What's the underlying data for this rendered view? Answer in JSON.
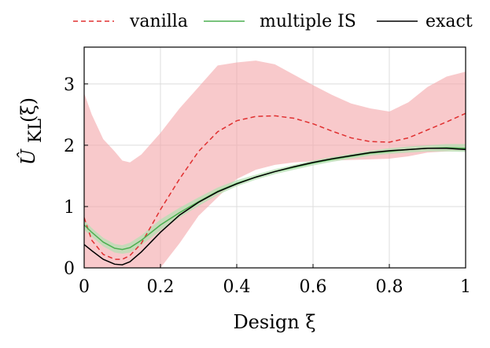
{
  "chart_data": {
    "type": "line",
    "xlabel": "Design ξ",
    "ylabel": "Û_KL(ξ)",
    "xlim": [
      0,
      1
    ],
    "ylim": [
      0,
      3.6
    ],
    "grid": true,
    "legend_position": "top",
    "x_ticks": [
      "0",
      "0.2",
      "0.4",
      "0.6",
      "0.8",
      "1"
    ],
    "y_ticks": [
      "0",
      "1",
      "2",
      "3"
    ],
    "x_tick_values": [
      0,
      0.2,
      0.4,
      0.6,
      0.8,
      1
    ],
    "y_tick_values": [
      0,
      1,
      2,
      3
    ],
    "series": [
      {
        "name": "vanilla",
        "color": "#e03030",
        "style": "dashed",
        "band_color": "#f4a5a8",
        "x": [
          0,
          0.02,
          0.05,
          0.08,
          0.1,
          0.12,
          0.15,
          0.2,
          0.25,
          0.3,
          0.35,
          0.4,
          0.45,
          0.5,
          0.55,
          0.6,
          0.65,
          0.7,
          0.75,
          0.8,
          0.85,
          0.9,
          0.95,
          1.0
        ],
        "y": [
          0.82,
          0.45,
          0.22,
          0.14,
          0.14,
          0.2,
          0.4,
          0.95,
          1.45,
          1.9,
          2.22,
          2.4,
          2.47,
          2.48,
          2.44,
          2.35,
          2.23,
          2.12,
          2.06,
          2.05,
          2.12,
          2.25,
          2.38,
          2.52
        ],
        "upper": [
          2.85,
          2.5,
          2.1,
          1.9,
          1.75,
          1.72,
          1.85,
          2.2,
          2.6,
          2.95,
          3.3,
          3.35,
          3.38,
          3.32,
          3.15,
          2.98,
          2.82,
          2.68,
          2.6,
          2.55,
          2.7,
          2.95,
          3.12,
          3.2
        ],
        "lower": [
          0,
          0,
          0,
          0,
          0,
          0,
          0,
          0,
          0.4,
          0.85,
          1.15,
          1.45,
          1.6,
          1.68,
          1.72,
          1.74,
          1.75,
          1.76,
          1.77,
          1.78,
          1.82,
          1.88,
          1.9,
          1.92
        ]
      },
      {
        "name": "multiple IS",
        "color": "#4caf50",
        "style": "solid",
        "band_color": "#b6dfb3",
        "x": [
          0,
          0.02,
          0.05,
          0.08,
          0.1,
          0.12,
          0.15,
          0.2,
          0.25,
          0.3,
          0.35,
          0.4,
          0.45,
          0.5,
          0.55,
          0.6,
          0.65,
          0.7,
          0.75,
          0.8,
          0.85,
          0.9,
          0.95,
          1.0
        ],
        "y": [
          0.7,
          0.58,
          0.42,
          0.32,
          0.3,
          0.33,
          0.45,
          0.7,
          0.9,
          1.08,
          1.25,
          1.38,
          1.48,
          1.57,
          1.64,
          1.71,
          1.77,
          1.82,
          1.87,
          1.9,
          1.93,
          1.95,
          1.96,
          1.95
        ],
        "upper": [
          0.78,
          0.65,
          0.49,
          0.39,
          0.37,
          0.41,
          0.53,
          0.79,
          0.98,
          1.15,
          1.31,
          1.43,
          1.52,
          1.61,
          1.68,
          1.75,
          1.81,
          1.86,
          1.91,
          1.95,
          1.98,
          2.0,
          2.02,
          2.02
        ],
        "lower": [
          0.62,
          0.51,
          0.35,
          0.25,
          0.23,
          0.25,
          0.37,
          0.61,
          0.82,
          1.01,
          1.19,
          1.33,
          1.44,
          1.53,
          1.6,
          1.67,
          1.73,
          1.78,
          1.83,
          1.86,
          1.88,
          1.9,
          1.9,
          1.89
        ]
      },
      {
        "name": "exact",
        "color": "#000000",
        "style": "solid",
        "x": [
          0,
          0.02,
          0.05,
          0.08,
          0.1,
          0.12,
          0.15,
          0.2,
          0.25,
          0.3,
          0.35,
          0.4,
          0.45,
          0.5,
          0.55,
          0.6,
          0.65,
          0.7,
          0.75,
          0.8,
          0.85,
          0.9,
          0.95,
          1.0
        ],
        "y": [
          0.38,
          0.28,
          0.14,
          0.06,
          0.05,
          0.1,
          0.26,
          0.58,
          0.86,
          1.07,
          1.24,
          1.37,
          1.48,
          1.57,
          1.65,
          1.72,
          1.78,
          1.83,
          1.88,
          1.91,
          1.93,
          1.95,
          1.95,
          1.93
        ]
      }
    ]
  }
}
